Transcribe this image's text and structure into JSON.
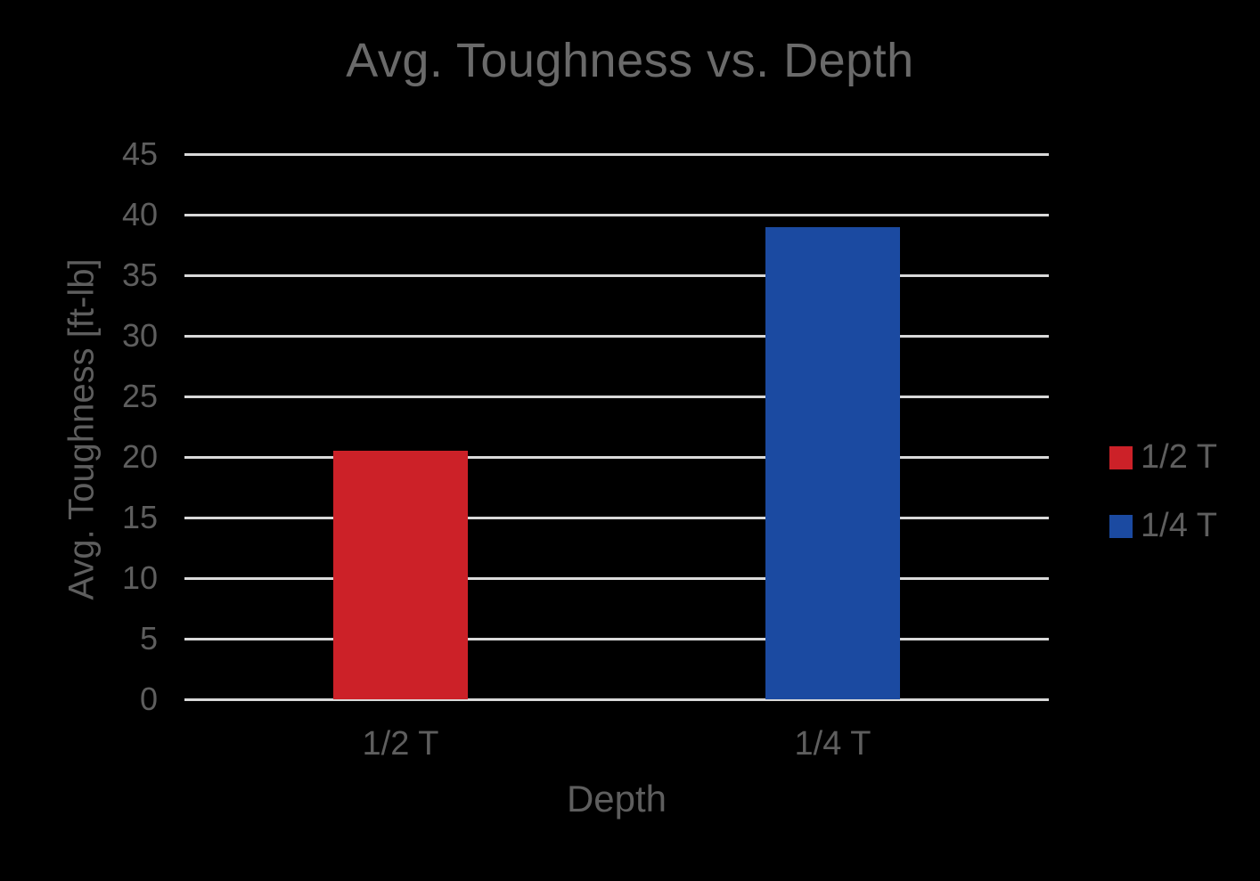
{
  "chart_data": {
    "type": "bar",
    "title": "Avg. Toughness vs. Depth",
    "xlabel": "Depth",
    "ylabel": "Avg. Toughness [ft-lb]",
    "categories": [
      "1/2 T",
      "1/4 T"
    ],
    "values": [
      20.5,
      39
    ],
    "bar_colors": [
      "#CC2128",
      "#1B4AA1"
    ],
    "ylim": [
      0,
      45
    ],
    "ytick_step": 5,
    "ytick_labels": [
      "0",
      "5",
      "10",
      "15",
      "20",
      "25",
      "30",
      "35",
      "40",
      "45"
    ],
    "grid": true,
    "legend": {
      "position": "right",
      "entries": [
        {
          "label": "1/2 T",
          "color": "#CC2128"
        },
        {
          "label": "1/4 T",
          "color": "#1B4AA1"
        }
      ]
    }
  },
  "colors": {
    "background": "#000000",
    "gridline": "#D9D9D9",
    "text": "#5E5E5E",
    "title": "#6A6A6A"
  }
}
